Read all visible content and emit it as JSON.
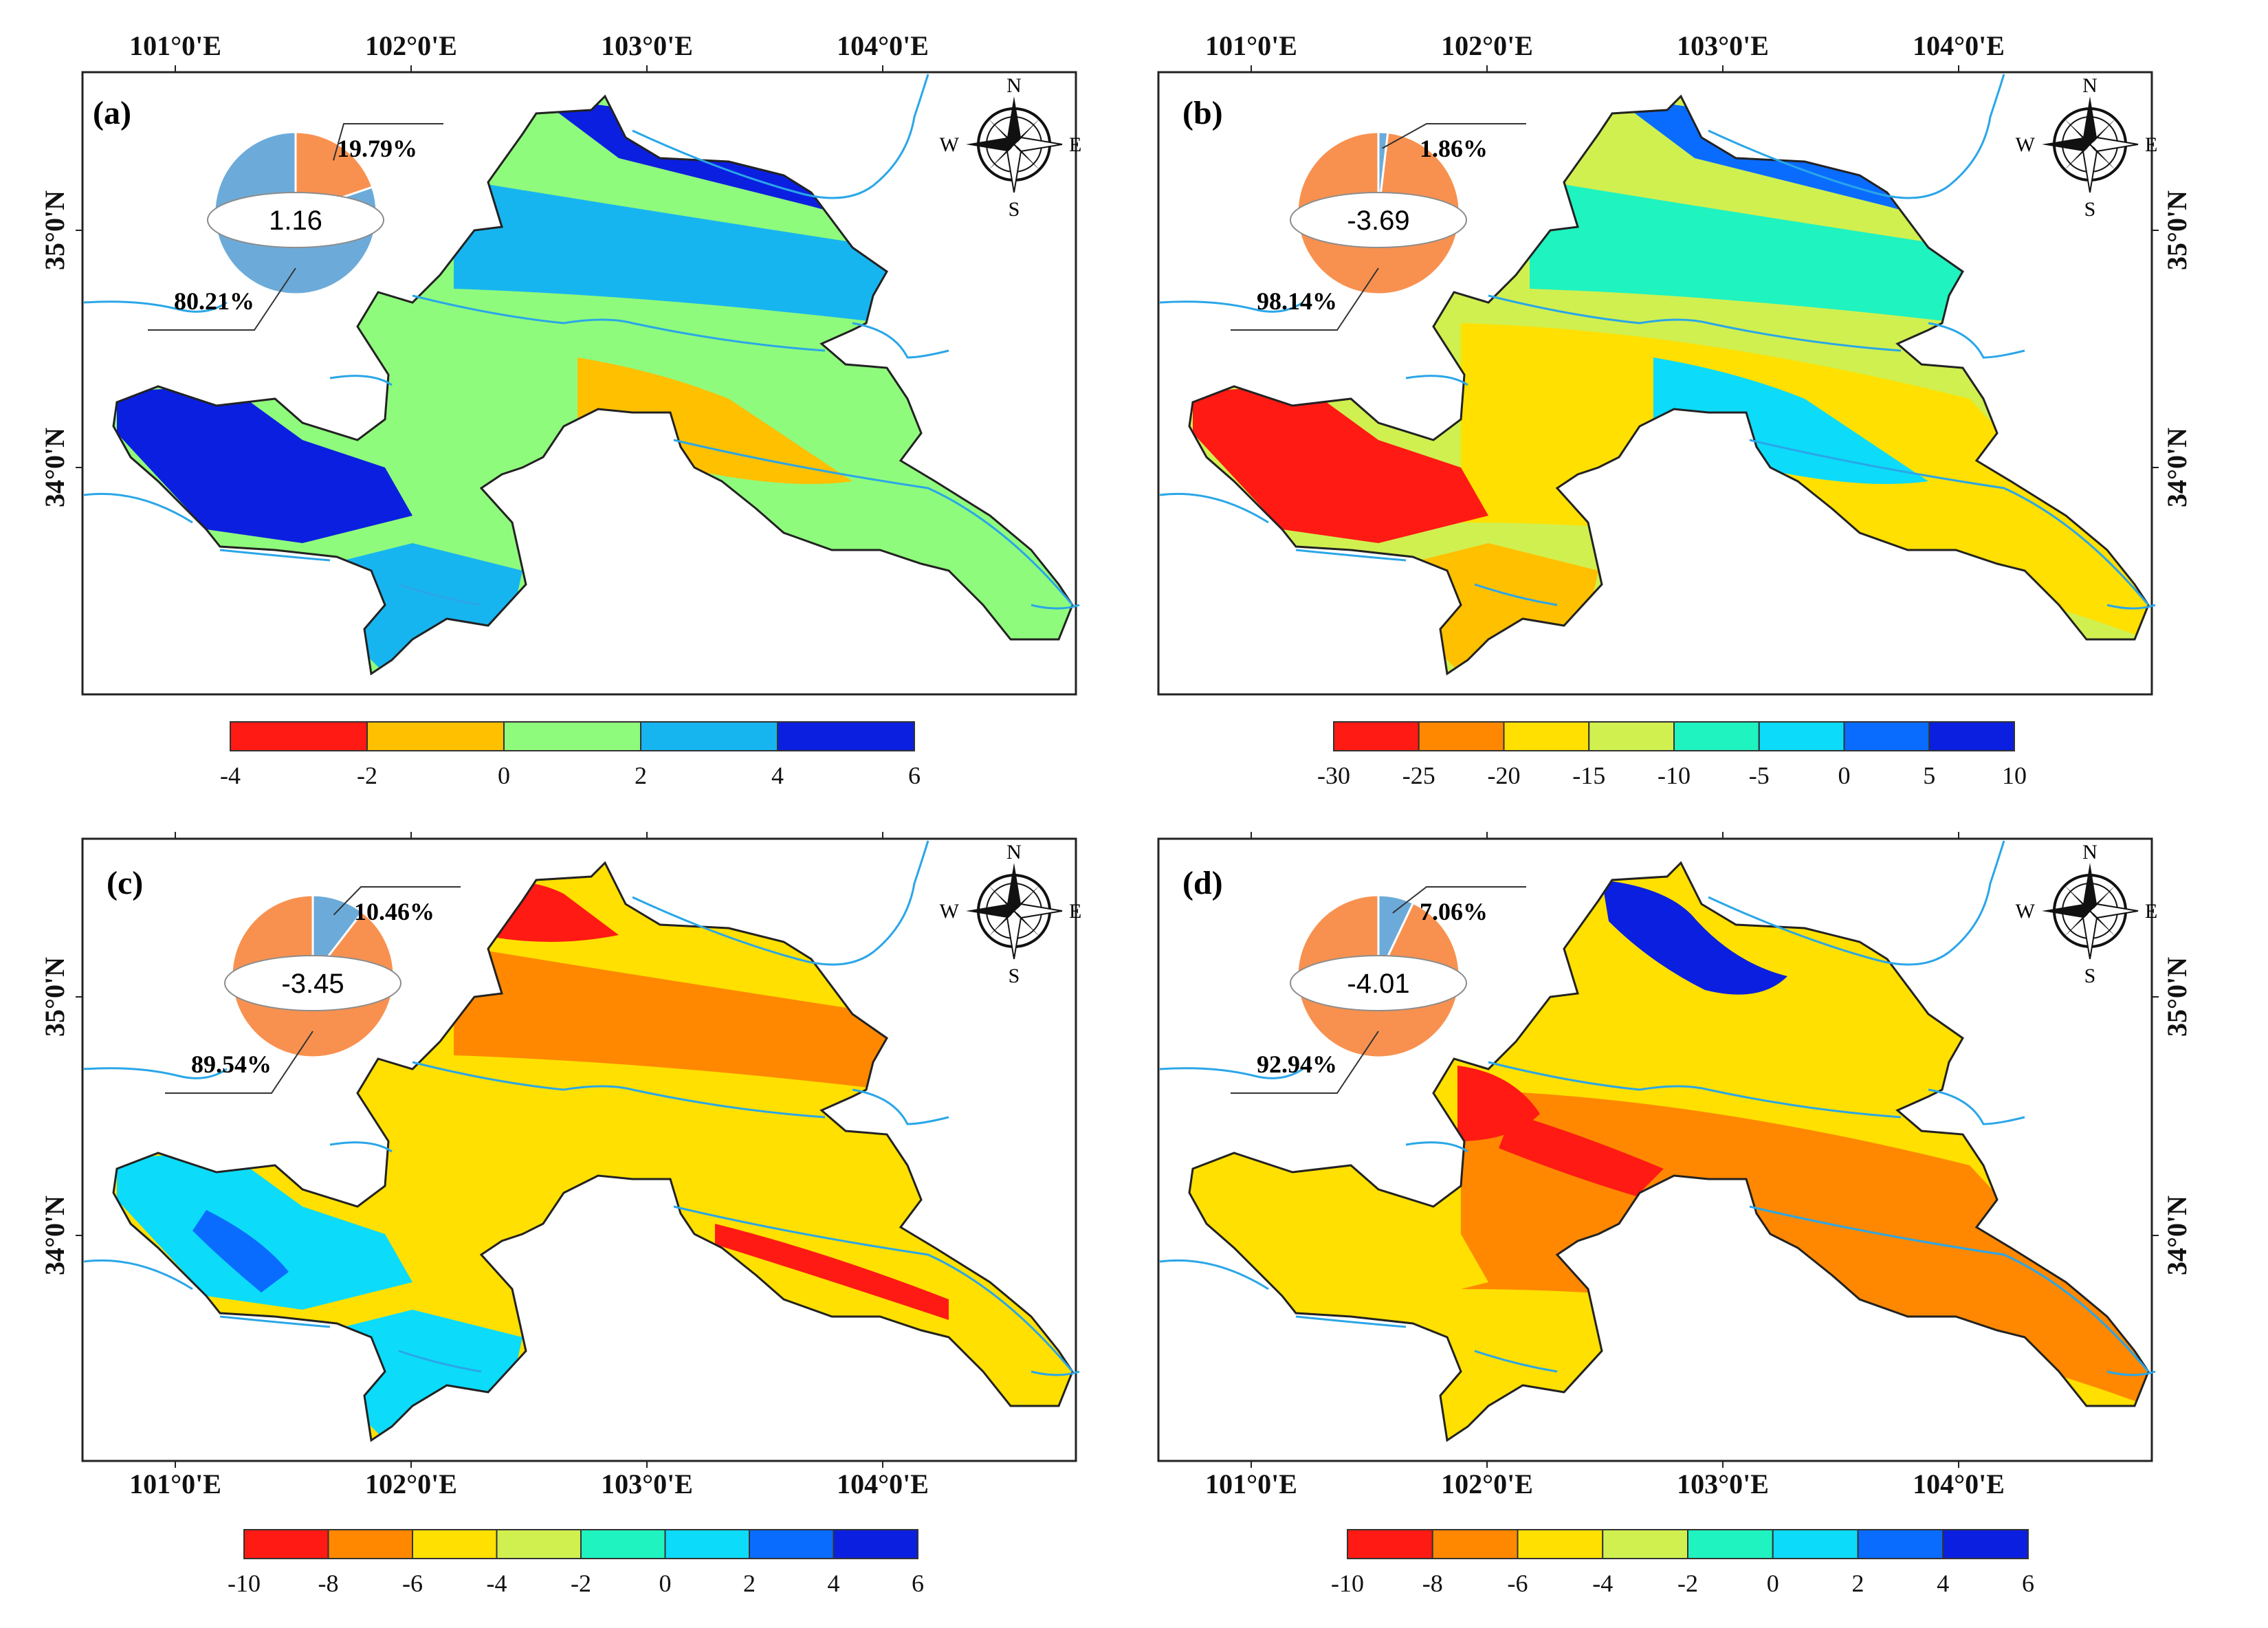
{
  "colors": {
    "red": "#ff1a14",
    "orange": "#ff8800",
    "gold": "#ffc000",
    "yellow": "#ffe000",
    "ltgreen": "#d0f050",
    "green": "#8ffb7c",
    "aqua": "#1ff3c0",
    "cyan": "#0cdbfa",
    "sky": "#17b5f0",
    "blue": "#0a6cff",
    "dblue": "#0b1fe0",
    "pie_orange": "#f89150",
    "pie_blue": "#6cabd9",
    "river": "#2aa6e8"
  },
  "compass": {
    "n": "N",
    "s": "S",
    "e": "E",
    "w": "W"
  },
  "axis": {
    "lon_labels": [
      "101°0'E",
      "102°0'E",
      "103°0'E",
      "104°0'E"
    ],
    "lat_labels": [
      "35°0'N",
      "34°0'N"
    ]
  },
  "panels": [
    {
      "label": "(a)",
      "pie": {
        "center_value": "1.16",
        "small_pct": "19.79%",
        "large_pct": "80.21%",
        "small_value": 19.79,
        "small_color": "orange",
        "large_color": "blue"
      },
      "scheme": [
        "green",
        "sky",
        "green",
        "gold",
        "dblue",
        "sky",
        "dblue"
      ],
      "legend": {
        "colors": [
          "red",
          "gold",
          "green",
          "sky",
          "dblue"
        ],
        "ticks": [
          "-4",
          "-2",
          "0",
          "2",
          "4",
          "6"
        ]
      }
    },
    {
      "label": "(b)",
      "pie": {
        "center_value": "-3.69",
        "small_pct": "1.86%",
        "large_pct": "98.14%",
        "small_value": 1.86,
        "small_color": "blue",
        "large_color": "orange"
      },
      "scheme": [
        "ltgreen",
        "aqua",
        "yellow",
        "cyan",
        "red",
        "gold",
        "blue"
      ],
      "legend": {
        "colors": [
          "red",
          "orange",
          "yellow",
          "ltgreen",
          "aqua",
          "cyan",
          "blue",
          "dblue"
        ],
        "ticks": [
          "-30",
          "-25",
          "-20",
          "-15",
          "-10",
          "-5",
          "0",
          "5",
          "10"
        ]
      }
    },
    {
      "label": "(c)",
      "pie": {
        "center_value": "-3.45",
        "small_pct": "10.46%",
        "large_pct": "89.54%",
        "small_value": 10.46,
        "small_color": "blue",
        "large_color": "orange"
      },
      "scheme": [
        "yellow",
        "orange",
        "yellow",
        "cyan",
        "red",
        "red",
        "blue"
      ],
      "legend": {
        "colors": [
          "red",
          "orange",
          "yellow",
          "ltgreen",
          "aqua",
          "cyan",
          "blue",
          "dblue"
        ],
        "ticks": [
          "-10",
          "-8",
          "-6",
          "-4",
          "-2",
          "0",
          "2",
          "4",
          "6"
        ]
      }
    },
    {
      "label": "(d)",
      "pie": {
        "center_value": "-4.01",
        "small_pct": "7.06%",
        "large_pct": "92.94%",
        "small_value": 7.06,
        "small_color": "blue",
        "large_color": "orange"
      },
      "scheme": [
        "yellow",
        "orange",
        "yellow",
        "yellow",
        "dblue",
        "red",
        "red"
      ],
      "legend": {
        "colors": [
          "red",
          "orange",
          "yellow",
          "ltgreen",
          "aqua",
          "cyan",
          "blue",
          "dblue"
        ],
        "ticks": [
          "-10",
          "-8",
          "-6",
          "-4",
          "-2",
          "0",
          "2",
          "4",
          "6"
        ]
      }
    }
  ]
}
